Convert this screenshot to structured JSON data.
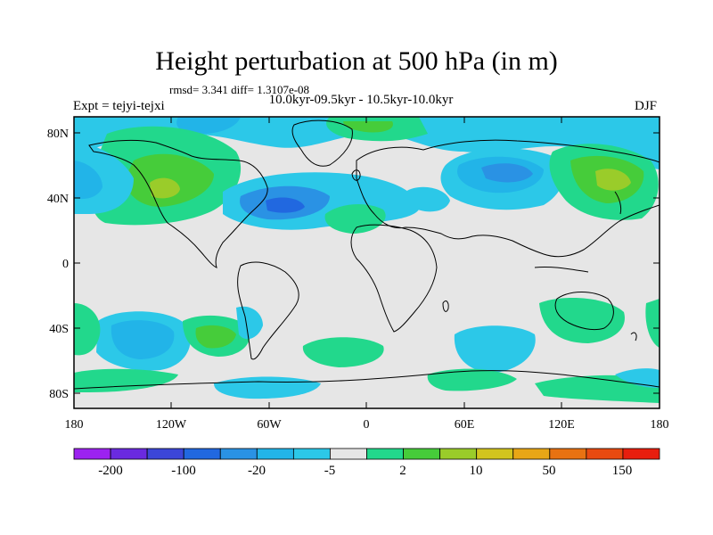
{
  "title": "Height perturbation at 500 hPa (in m)",
  "stats": "rmsd= 3.341 diff= 1.3107e-08",
  "experiment": "Expt = tejyi-tejxi",
  "period": "10.0kyr-09.5kyr - 10.5kyr-10.0kyr",
  "season": "DJF",
  "lat_ticks": [
    "80N",
    "40N",
    "0",
    "40S",
    "80S"
  ],
  "lon_ticks": [
    "180",
    "120W",
    "60W",
    "0",
    "60E",
    "120E",
    "180"
  ],
  "colorbar_labels": [
    "-200",
    "-100",
    "-20",
    "-5",
    "2",
    "10",
    "50",
    "150"
  ],
  "colorbar_colors": [
    "#9c22f0",
    "#6a2ae0",
    "#3c46d8",
    "#2168e0",
    "#2a92e4",
    "#22b4e8",
    "#2cc8e8",
    "#e6e6e6",
    "#22d88c",
    "#46cc3a",
    "#9acc2a",
    "#d2c41e",
    "#e8a616",
    "#e87212",
    "#e84a10",
    "#e81e0e"
  ],
  "colors": {
    "background": "#e6e6e6",
    "coast": "#000000",
    "pos_small": "#22d88c",
    "pos_medium": "#46cc3a",
    "pos_large": "#9acc2a",
    "pos_xlarge": "#d2c41e",
    "neg_small": "#2cc8e8",
    "neg_medium": "#22b4e8",
    "neg_large": "#2a92e4",
    "neg_xlarge": "#2168e0"
  }
}
